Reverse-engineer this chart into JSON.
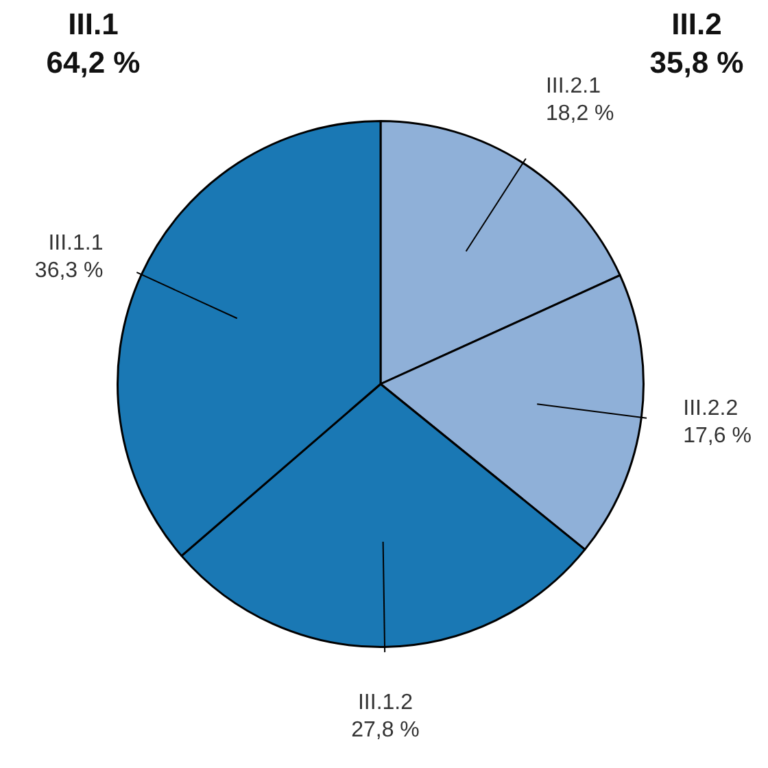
{
  "chart_data": {
    "type": "pie",
    "categories": [
      "III.2.1",
      "III.2.2",
      "III.1.2",
      "III.1.1"
    ],
    "values": [
      18.2,
      17.6,
      27.8,
      36.3
    ],
    "colors": [
      "#8fb0d8",
      "#8fb0d8",
      "#1a78b4",
      "#1a78b4"
    ],
    "value_labels": [
      "18,2 %",
      "17,6 %",
      "27,8 %",
      "36,3 %"
    ],
    "annotations": [
      "III.1",
      "64,2 %",
      "III.2",
      "35,8 %"
    ]
  }
}
